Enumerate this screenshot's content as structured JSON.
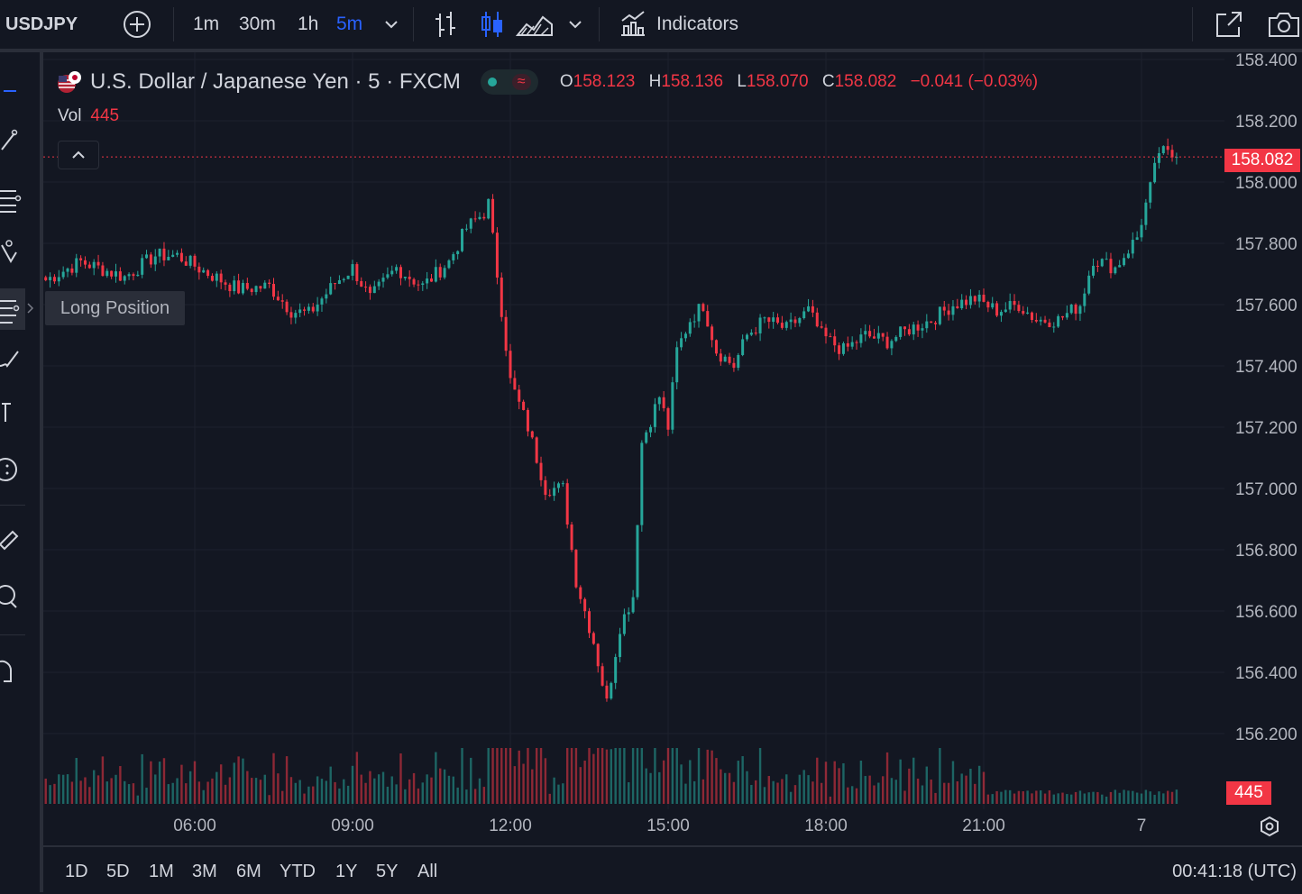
{
  "toolbar": {
    "symbol": "USDJPY",
    "intervals": [
      "1m",
      "30m",
      "1h",
      "5m"
    ],
    "active_interval": "5m",
    "indicators_label": "Indicators"
  },
  "legend": {
    "title": "U.S. Dollar / Japanese Yen · 5 · FXCM",
    "ohlc": {
      "o_label": "O",
      "o": "158.123",
      "h_label": "H",
      "h": "158.136",
      "l_label": "L",
      "l": "158.070",
      "c_label": "C",
      "c": "158.082",
      "change": "−0.041 (−0.03%)"
    },
    "vol_label": "Vol",
    "vol_value": "445"
  },
  "tooltip": "Long Position",
  "price_axis": {
    "labels": [
      "158.400",
      "158.200",
      "158.000",
      "157.800",
      "157.600",
      "157.400",
      "157.200",
      "157.000",
      "156.800",
      "156.600",
      "156.400",
      "156.200"
    ],
    "last_price": "158.082",
    "last_volume": "445"
  },
  "time_axis": {
    "labels": [
      "06:00",
      "09:00",
      "12:00",
      "15:00",
      "18:00",
      "21:00",
      "7"
    ]
  },
  "ranges": [
    "1D",
    "5D",
    "1M",
    "3M",
    "6M",
    "YTD",
    "1Y",
    "5Y",
    "All"
  ],
  "clock": "00:41:18 (UTC)",
  "colors": {
    "up": "#26a69a",
    "down": "#f23645",
    "background": "#131722",
    "accent": "#2962ff"
  },
  "chart_data": {
    "type": "candlestick",
    "title": "U.S. Dollar / Japanese Yen · 5 · FXCM",
    "xlabel": "",
    "ylabel": "",
    "ylim": [
      156.1,
      158.4
    ],
    "x_ticks": [
      "06:00",
      "09:00",
      "12:00",
      "15:00",
      "18:00",
      "21:00",
      "7"
    ],
    "close_path": [
      {
        "t": "03:10",
        "y": 157.68
      },
      {
        "t": "03:50",
        "y": 157.74
      },
      {
        "t": "04:40",
        "y": 157.69
      },
      {
        "t": "05:15",
        "y": 157.76
      },
      {
        "t": "05:40",
        "y": 157.76
      },
      {
        "t": "06:10",
        "y": 157.71
      },
      {
        "t": "06:50",
        "y": 157.65
      },
      {
        "t": "07:25",
        "y": 157.66
      },
      {
        "t": "07:50",
        "y": 157.58
      },
      {
        "t": "08:10",
        "y": 157.57
      },
      {
        "t": "08:40",
        "y": 157.67
      },
      {
        "t": "09:00",
        "y": 157.72
      },
      {
        "t": "09:20",
        "y": 157.62
      },
      {
        "t": "09:50",
        "y": 157.72
      },
      {
        "t": "10:20",
        "y": 157.66
      },
      {
        "t": "10:50",
        "y": 157.74
      },
      {
        "t": "11:10",
        "y": 157.85
      },
      {
        "t": "11:30",
        "y": 157.9
      },
      {
        "t": "11:35",
        "y": 157.93
      },
      {
        "t": "11:45",
        "y": 157.7
      },
      {
        "t": "12:00",
        "y": 157.35
      },
      {
        "t": "12:20",
        "y": 157.2
      },
      {
        "t": "12:40",
        "y": 157.0
      },
      {
        "t": "13:00",
        "y": 157.0
      },
      {
        "t": "13:15",
        "y": 156.7
      },
      {
        "t": "13:35",
        "y": 156.5
      },
      {
        "t": "13:50",
        "y": 156.3
      },
      {
        "t": "14:05",
        "y": 156.55
      },
      {
        "t": "14:20",
        "y": 156.65
      },
      {
        "t": "14:30",
        "y": 157.15
      },
      {
        "t": "14:50",
        "y": 157.3
      },
      {
        "t": "15:00",
        "y": 157.2
      },
      {
        "t": "15:10",
        "y": 157.45
      },
      {
        "t": "15:25",
        "y": 157.55
      },
      {
        "t": "15:40",
        "y": 157.6
      },
      {
        "t": "15:55",
        "y": 157.45
      },
      {
        "t": "16:15",
        "y": 157.4
      },
      {
        "t": "16:30",
        "y": 157.5
      },
      {
        "t": "16:50",
        "y": 157.55
      },
      {
        "t": "17:15",
        "y": 157.52
      },
      {
        "t": "17:40",
        "y": 157.58
      },
      {
        "t": "17:55",
        "y": 157.5
      },
      {
        "t": "18:20",
        "y": 157.45
      },
      {
        "t": "18:45",
        "y": 157.5
      },
      {
        "t": "19:10",
        "y": 157.48
      },
      {
        "t": "19:35",
        "y": 157.52
      },
      {
        "t": "20:00",
        "y": 157.55
      },
      {
        "t": "20:25",
        "y": 157.6
      },
      {
        "t": "20:50",
        "y": 157.62
      },
      {
        "t": "21:15",
        "y": 157.58
      },
      {
        "t": "21:40",
        "y": 157.6
      },
      {
        "t": "22:00",
        "y": 157.55
      },
      {
        "t": "22:25",
        "y": 157.55
      },
      {
        "t": "22:50",
        "y": 157.6
      },
      {
        "t": "23:05",
        "y": 157.75
      },
      {
        "t": "23:30",
        "y": 157.72
      },
      {
        "t": "23:55",
        "y": 157.82
      },
      {
        "t": "00:10",
        "y": 157.98
      },
      {
        "t": "00:20",
        "y": 158.1
      },
      {
        "t": "00:40",
        "y": 158.08
      }
    ],
    "volume_max": 445
  }
}
